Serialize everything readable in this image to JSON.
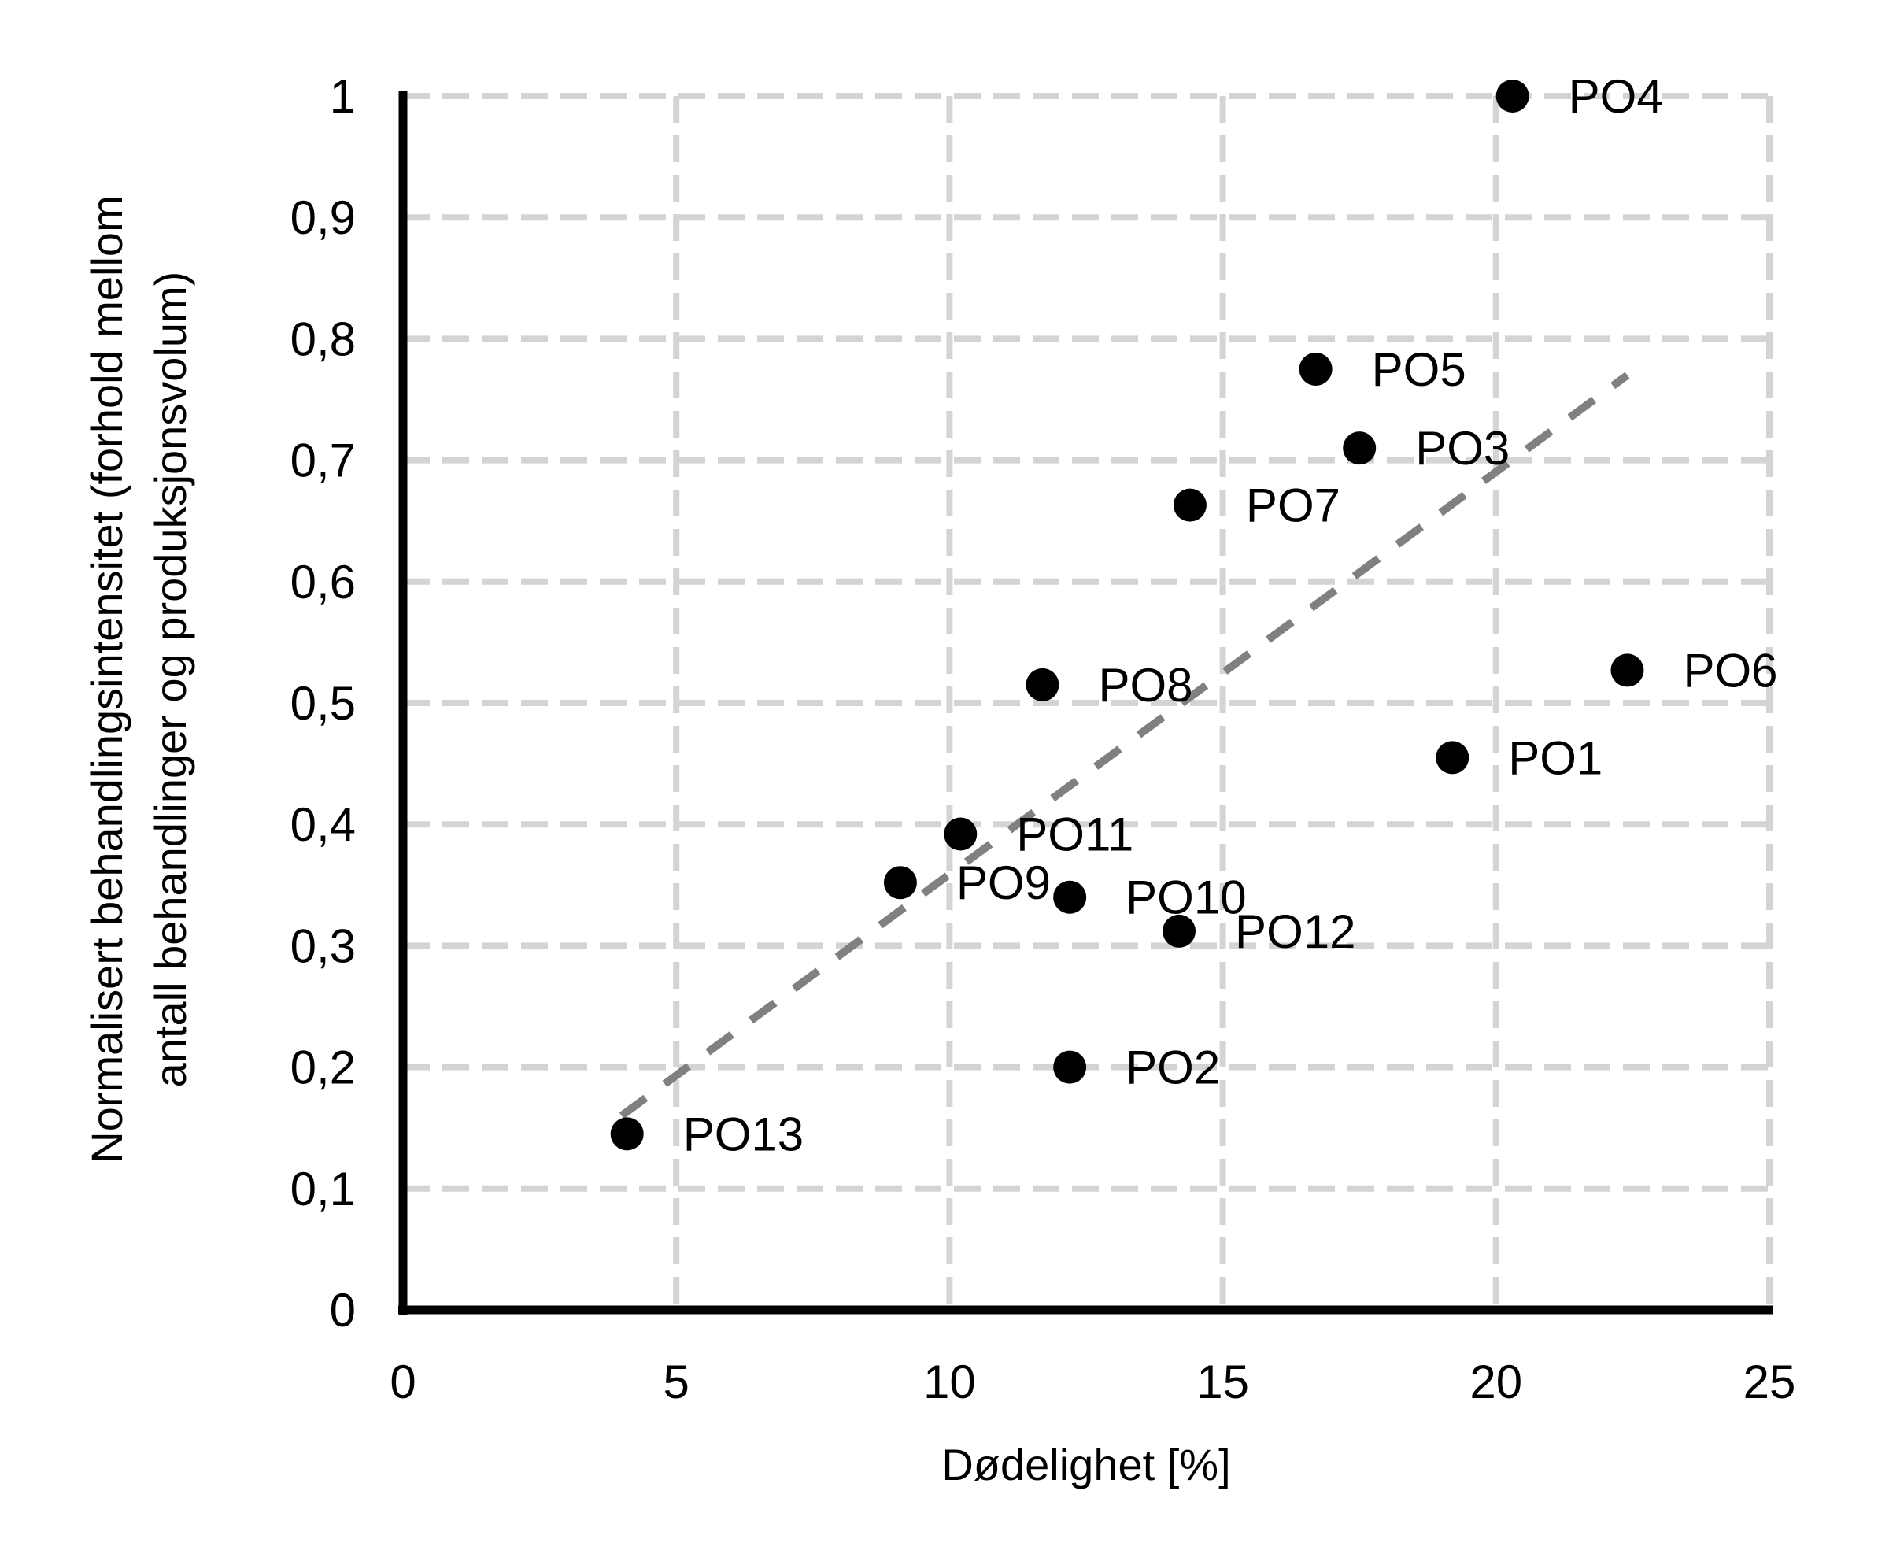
{
  "chart_data": {
    "type": "scatter",
    "title": "",
    "xlabel": "Dødelighet [%]",
    "ylabel_lines": [
      "Normalisert behandlingsintensitet  (forhold mellom",
      "antall behandlinger og produksjonsvolum)"
    ],
    "xlim": [
      0,
      25
    ],
    "ylim": [
      0,
      1
    ],
    "x_ticks": [
      0,
      5,
      10,
      15,
      20,
      25
    ],
    "x_tick_labels": [
      "0",
      "5",
      "10",
      "15",
      "20",
      "25"
    ],
    "y_ticks": [
      0,
      0.1,
      0.2,
      0.3,
      0.4,
      0.5,
      0.6,
      0.7,
      0.8,
      0.9,
      1
    ],
    "y_tick_labels": [
      "0",
      "0,1",
      "0,2",
      "0,3",
      "0,4",
      "0,5",
      "0,6",
      "0,7",
      "0,8",
      "0,9",
      "1"
    ],
    "grid": true,
    "points": [
      {
        "label": "PO1",
        "x": 19.2,
        "y": 0.455
      },
      {
        "label": "PO2",
        "x": 12.2,
        "y": 0.2
      },
      {
        "label": "PO3",
        "x": 17.5,
        "y": 0.71
      },
      {
        "label": "PO4",
        "x": 20.3,
        "y": 1.0
      },
      {
        "label": "PO5",
        "x": 16.7,
        "y": 0.775
      },
      {
        "label": "PO6",
        "x": 22.4,
        "y": 0.527
      },
      {
        "label": "PO7",
        "x": 14.4,
        "y": 0.663
      },
      {
        "label": "PO8",
        "x": 11.7,
        "y": 0.515
      },
      {
        "label": "PO9",
        "x": 9.1,
        "y": 0.352
      },
      {
        "label": "PO10",
        "x": 12.2,
        "y": 0.34
      },
      {
        "label": "PO11",
        "x": 10.2,
        "y": 0.392
      },
      {
        "label": "PO12",
        "x": 14.2,
        "y": 0.312
      },
      {
        "label": "PO13",
        "x": 4.1,
        "y": 0.145
      }
    ],
    "trendline": {
      "x": [
        4.0,
        22.4
      ],
      "y": [
        0.16,
        0.77
      ]
    }
  }
}
